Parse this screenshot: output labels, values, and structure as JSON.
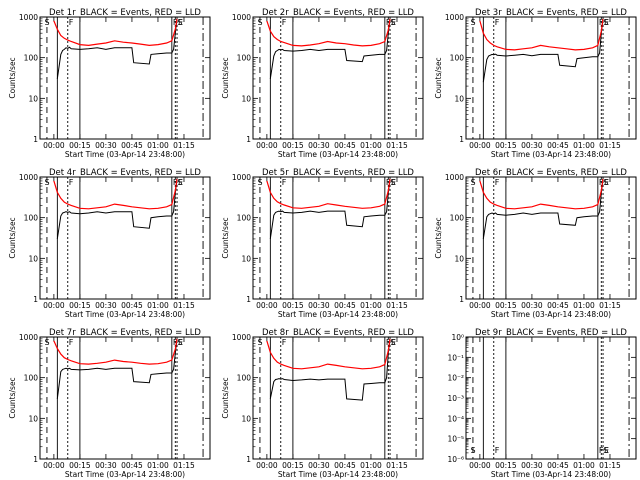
{
  "chart_data": [
    {
      "type": "line",
      "title": "Det 1r_BLACK = Events, RED = LLD",
      "xlabel": "Start Time (03-Apr-14 23:48:00)",
      "ylabel": "Counts/sec",
      "y_scale": "log",
      "ylim": [
        1,
        1000
      ],
      "y_ticks": [
        "1",
        "10",
        "100",
        "1000"
      ],
      "x_ticks": [
        "00:00",
        "00:15",
        "00:30",
        "00:45",
        "01:00",
        "01:15"
      ],
      "markers": [
        "S",
        "F",
        "FS",
        "E"
      ],
      "series": [
        {
          "name": "Events",
          "color": "#000000",
          "x": [
            2,
            4,
            5,
            6,
            7,
            8,
            9,
            10,
            15,
            20,
            25,
            30,
            35,
            40,
            45,
            46,
            55,
            56,
            60,
            65,
            68,
            69,
            70,
            71
          ],
          "values": [
            30,
            120,
            150,
            160,
            175,
            170,
            180,
            165,
            160,
            165,
            175,
            160,
            175,
            175,
            175,
            75,
            70,
            120,
            125,
            130,
            130,
            160,
            400,
            900
          ]
        },
        {
          "name": "LLD",
          "color": "#ff0000",
          "x": [
            0,
            2,
            4,
            6,
            8,
            10,
            15,
            20,
            25,
            30,
            35,
            40,
            45,
            50,
            55,
            60,
            65,
            68,
            70,
            71
          ],
          "values": [
            800,
            500,
            350,
            300,
            270,
            250,
            210,
            200,
            215,
            230,
            260,
            240,
            230,
            215,
            200,
            210,
            230,
            260,
            500,
            900
          ]
        }
      ]
    },
    {
      "type": "line",
      "title": "Det 2r_BLACK = Events, RED = LLD",
      "xlabel": "Start Time (03-Apr-14 23:48:00)",
      "ylabel": "Counts/sec",
      "y_scale": "log",
      "ylim": [
        1,
        1000
      ],
      "y_ticks": [
        "1",
        "10",
        "100",
        "1000"
      ],
      "x_ticks": [
        "00:00",
        "00:15",
        "00:30",
        "00:45",
        "01:00",
        "01:15"
      ],
      "markers": [
        "S",
        "F",
        "FS",
        "E"
      ],
      "series": [
        {
          "name": "Events",
          "color": "#000000",
          "x": [
            2,
            4,
            5,
            6,
            7,
            8,
            9,
            10,
            15,
            20,
            25,
            30,
            35,
            40,
            45,
            46,
            55,
            56,
            60,
            65,
            68,
            69,
            70,
            71
          ],
          "values": [
            30,
            110,
            140,
            150,
            160,
            155,
            160,
            150,
            145,
            150,
            160,
            150,
            160,
            160,
            160,
            85,
            80,
            110,
            115,
            120,
            120,
            150,
            400,
            900
          ]
        },
        {
          "name": "LLD",
          "color": "#ff0000",
          "x": [
            0,
            2,
            4,
            6,
            8,
            10,
            15,
            20,
            25,
            30,
            35,
            40,
            45,
            50,
            55,
            60,
            65,
            68,
            70,
            71
          ],
          "values": [
            800,
            450,
            330,
            280,
            250,
            235,
            200,
            195,
            205,
            220,
            250,
            230,
            220,
            205,
            195,
            200,
            220,
            250,
            480,
            900
          ]
        }
      ]
    },
    {
      "type": "line",
      "title": "Det 3r_BLACK = Events, RED = LLD",
      "xlabel": "Start Time (03-Apr-14 23:48:00)",
      "ylabel": "Counts/sec",
      "y_scale": "log",
      "ylim": [
        1,
        1000
      ],
      "y_ticks": [
        "1",
        "10",
        "100",
        "1000"
      ],
      "x_ticks": [
        "00:00",
        "00:15",
        "00:30",
        "00:45",
        "01:00",
        "01:15"
      ],
      "markers": [
        "S",
        "F",
        "FS",
        "E"
      ],
      "series": [
        {
          "name": "Events",
          "color": "#000000",
          "x": [
            2,
            4,
            5,
            6,
            7,
            8,
            9,
            10,
            15,
            20,
            25,
            30,
            35,
            40,
            45,
            46,
            55,
            56,
            60,
            65,
            68,
            69,
            70,
            71
          ],
          "values": [
            25,
            90,
            110,
            115,
            120,
            118,
            122,
            115,
            110,
            115,
            120,
            112,
            120,
            120,
            120,
            65,
            60,
            95,
            100,
            105,
            105,
            130,
            400,
            900
          ]
        },
        {
          "name": "LLD",
          "color": "#ff0000",
          "x": [
            0,
            2,
            4,
            6,
            8,
            10,
            15,
            20,
            25,
            30,
            35,
            40,
            45,
            50,
            55,
            60,
            65,
            68,
            70,
            71
          ],
          "values": [
            800,
            400,
            280,
            230,
            200,
            185,
            160,
            155,
            165,
            175,
            200,
            185,
            175,
            165,
            155,
            160,
            175,
            200,
            450,
            900
          ]
        }
      ]
    },
    {
      "type": "line",
      "title": "Det 4r_BLACK = Events, RED = LLD",
      "xlabel": "Start Time (03-Apr-14 23:48:00)",
      "ylabel": "Counts/sec",
      "y_scale": "log",
      "ylim": [
        1,
        1000
      ],
      "y_ticks": [
        "1",
        "10",
        "100",
        "1000"
      ],
      "x_ticks": [
        "00:00",
        "00:15",
        "00:30",
        "00:45",
        "01:00",
        "01:15"
      ],
      "markers": [
        "S",
        "F",
        "FS",
        "E"
      ],
      "series": [
        {
          "name": "Events",
          "color": "#000000",
          "x": [
            2,
            4,
            5,
            6,
            7,
            8,
            9,
            10,
            15,
            20,
            25,
            30,
            35,
            40,
            45,
            46,
            55,
            56,
            60,
            65,
            68,
            69,
            70,
            71
          ],
          "values": [
            30,
            110,
            130,
            135,
            140,
            135,
            140,
            130,
            125,
            130,
            140,
            130,
            140,
            140,
            140,
            60,
            55,
            100,
            105,
            110,
            110,
            140,
            400,
            900
          ]
        },
        {
          "name": "LLD",
          "color": "#ff0000",
          "x": [
            0,
            2,
            4,
            6,
            8,
            10,
            15,
            20,
            25,
            30,
            35,
            40,
            45,
            50,
            55,
            60,
            65,
            68,
            70,
            71
          ],
          "values": [
            800,
            420,
            300,
            240,
            215,
            200,
            170,
            165,
            175,
            185,
            215,
            200,
            185,
            175,
            165,
            170,
            185,
            210,
            460,
            900
          ]
        }
      ]
    },
    {
      "type": "line",
      "title": "Det 5r_BLACK = Events, RED = LLD",
      "xlabel": "Start Time (03-Apr-14 23:48:00)",
      "ylabel": "Counts/sec",
      "y_scale": "log",
      "ylim": [
        1,
        1000
      ],
      "y_ticks": [
        "1",
        "10",
        "100",
        "1000"
      ],
      "x_ticks": [
        "00:00",
        "00:15",
        "00:30",
        "00:45",
        "01:00",
        "01:15"
      ],
      "markers": [
        "S",
        "F",
        "FS",
        "E"
      ],
      "series": [
        {
          "name": "Events",
          "color": "#000000",
          "x": [
            2,
            4,
            5,
            6,
            7,
            8,
            9,
            10,
            15,
            20,
            25,
            30,
            35,
            40,
            45,
            46,
            55,
            56,
            60,
            65,
            68,
            69,
            70,
            71
          ],
          "values": [
            30,
            115,
            135,
            140,
            145,
            140,
            145,
            135,
            130,
            135,
            145,
            135,
            145,
            145,
            145,
            65,
            60,
            105,
            110,
            115,
            115,
            140,
            400,
            900
          ]
        },
        {
          "name": "LLD",
          "color": "#ff0000",
          "x": [
            0,
            2,
            4,
            6,
            8,
            10,
            15,
            20,
            25,
            30,
            35,
            40,
            45,
            50,
            55,
            60,
            65,
            68,
            70,
            71
          ],
          "values": [
            800,
            420,
            300,
            245,
            220,
            205,
            175,
            170,
            180,
            190,
            220,
            205,
            190,
            180,
            170,
            175,
            190,
            215,
            460,
            900
          ]
        }
      ]
    },
    {
      "type": "line",
      "title": "Det 6r_BLACK = Events, RED = LLD",
      "xlabel": "Start Time (03-Apr-14 23:48:00)",
      "ylabel": "Counts/sec",
      "y_scale": "log",
      "ylim": [
        1,
        1000
      ],
      "y_ticks": [
        "1",
        "10",
        "100",
        "1000"
      ],
      "x_ticks": [
        "00:00",
        "00:15",
        "00:30",
        "00:45",
        "01:00",
        "01:15"
      ],
      "markers": [
        "S",
        "F",
        "FS",
        "E"
      ],
      "series": [
        {
          "name": "Events",
          "color": "#000000",
          "x": [
            2,
            4,
            5,
            6,
            7,
            8,
            9,
            10,
            15,
            20,
            25,
            30,
            35,
            40,
            45,
            46,
            55,
            56,
            60,
            65,
            68,
            69,
            70,
            71
          ],
          "values": [
            30,
            105,
            120,
            125,
            130,
            125,
            130,
            120,
            115,
            120,
            130,
            120,
            130,
            130,
            130,
            70,
            65,
            100,
            105,
            110,
            110,
            140,
            400,
            900
          ]
        },
        {
          "name": "LLD",
          "color": "#ff0000",
          "x": [
            0,
            2,
            4,
            6,
            8,
            10,
            15,
            20,
            25,
            30,
            35,
            40,
            45,
            50,
            55,
            60,
            65,
            68,
            70,
            71
          ],
          "values": [
            800,
            420,
            300,
            240,
            215,
            200,
            170,
            165,
            175,
            185,
            215,
            200,
            185,
            175,
            165,
            170,
            185,
            210,
            460,
            900
          ]
        }
      ]
    },
    {
      "type": "line",
      "title": "Det 7r_BLACK = Events, RED = LLD",
      "xlabel": "Start Time (03-Apr-14 23:48:00)",
      "ylabel": "Counts/sec",
      "y_scale": "log",
      "ylim": [
        1,
        1000
      ],
      "y_ticks": [
        "1",
        "10",
        "100",
        "1000"
      ],
      "x_ticks": [
        "00:00",
        "00:15",
        "00:30",
        "00:45",
        "01:00",
        "01:15"
      ],
      "markers": [
        "S",
        "F",
        "FS",
        "E"
      ],
      "series": [
        {
          "name": "Events",
          "color": "#000000",
          "x": [
            2,
            4,
            5,
            6,
            7,
            8,
            9,
            10,
            15,
            20,
            25,
            30,
            35,
            40,
            45,
            46,
            55,
            56,
            60,
            65,
            68,
            69,
            70,
            71
          ],
          "values": [
            30,
            140,
            160,
            165,
            170,
            165,
            170,
            160,
            155,
            160,
            170,
            160,
            170,
            170,
            170,
            80,
            75,
            120,
            125,
            130,
            130,
            160,
            400,
            900
          ]
        },
        {
          "name": "LLD",
          "color": "#ff0000",
          "x": [
            0,
            2,
            4,
            6,
            8,
            10,
            15,
            20,
            25,
            30,
            35,
            40,
            45,
            50,
            55,
            60,
            65,
            68,
            70,
            71
          ],
          "values": [
            800,
            520,
            380,
            310,
            280,
            260,
            220,
            215,
            225,
            240,
            270,
            250,
            240,
            225,
            215,
            220,
            240,
            270,
            500,
            900
          ]
        }
      ]
    },
    {
      "type": "line",
      "title": "Det 8r_BLACK = Events, RED = LLD",
      "xlabel": "Start Time (03-Apr-14 23:48:00)",
      "ylabel": "Counts/sec",
      "y_scale": "log",
      "ylim": [
        1,
        1000
      ],
      "y_ticks": [
        "1",
        "10",
        "100",
        "1000"
      ],
      "x_ticks": [
        "00:00",
        "00:15",
        "00:30",
        "00:45",
        "01:00",
        "01:15"
      ],
      "markers": [
        "S",
        "F",
        "FS",
        "E"
      ],
      "series": [
        {
          "name": "Events",
          "color": "#000000",
          "x": [
            2,
            4,
            5,
            6,
            7,
            8,
            9,
            10,
            15,
            20,
            25,
            30,
            35,
            40,
            45,
            46,
            55,
            56,
            60,
            65,
            68,
            69,
            70,
            71
          ],
          "values": [
            30,
            80,
            90,
            92,
            95,
            92,
            95,
            90,
            85,
            88,
            92,
            88,
            92,
            92,
            92,
            30,
            28,
            70,
            72,
            75,
            75,
            100,
            400,
            900
          ]
        },
        {
          "name": "LLD",
          "color": "#ff0000",
          "x": [
            0,
            2,
            4,
            6,
            8,
            10,
            15,
            20,
            25,
            30,
            35,
            40,
            45,
            50,
            55,
            60,
            65,
            68,
            70,
            71
          ],
          "values": [
            800,
            420,
            300,
            240,
            215,
            200,
            170,
            165,
            175,
            185,
            215,
            200,
            185,
            175,
            165,
            170,
            185,
            210,
            460,
            900
          ]
        }
      ]
    },
    {
      "type": "line",
      "title": "Det 9r_BLACK = Events, RED = LLD",
      "xlabel": "Start Time (03-Apr-14 23:48:00)",
      "ylabel": "",
      "y_scale": "log",
      "ylim": [
        1e-06,
        1
      ],
      "y_ticks": [
        "10⁰",
        "10⁻¹",
        "10⁻²",
        "10⁻³",
        "10⁻⁴",
        "10⁻⁵",
        "10⁻⁶"
      ],
      "x_ticks": [
        "00:00",
        "00:15",
        "00:30",
        "00:45",
        "01:00",
        "01:15"
      ],
      "markers": [
        "S",
        "F",
        "FS",
        "E"
      ],
      "series": []
    }
  ]
}
